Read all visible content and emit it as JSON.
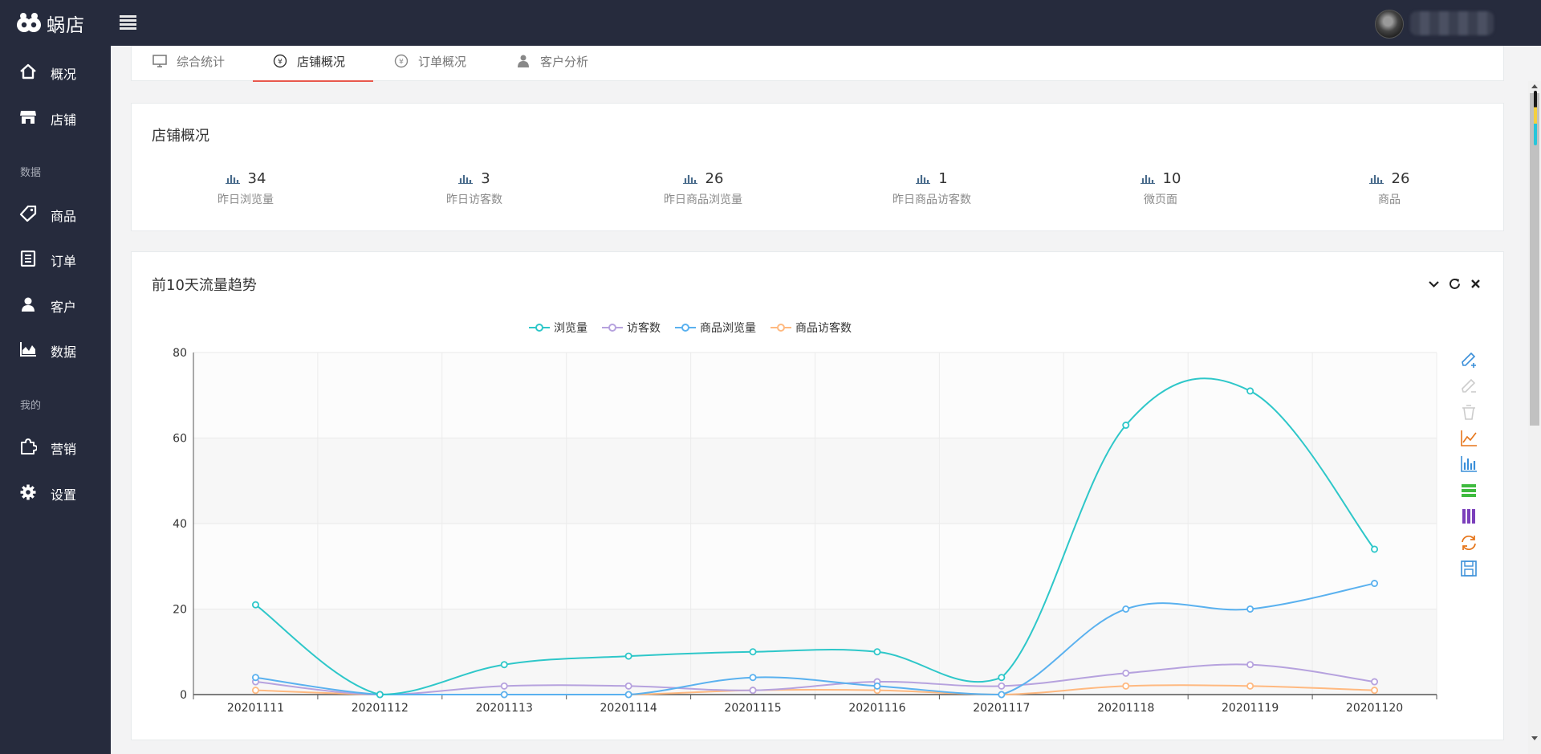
{
  "app": {
    "logo_text": "蜗店",
    "brand_color": "#262b3d",
    "accent_color": "#e8584d"
  },
  "sidebar": {
    "items_top": [
      {
        "label": "概况",
        "icon": "home-icon"
      },
      {
        "label": "店铺",
        "icon": "store-icon"
      }
    ],
    "section_data": "数据",
    "items_data": [
      {
        "label": "商品",
        "icon": "tag-icon"
      },
      {
        "label": "订单",
        "icon": "list-icon"
      },
      {
        "label": "客户",
        "icon": "user-icon"
      },
      {
        "label": "数据",
        "icon": "area-chart-icon"
      }
    ],
    "section_mine": "我的",
    "items_mine": [
      {
        "label": "营销",
        "icon": "puzzle-icon"
      },
      {
        "label": "设置",
        "icon": "gear-icon"
      }
    ]
  },
  "tabs": [
    {
      "label": "综合统计",
      "icon": "monitor-icon",
      "active": false
    },
    {
      "label": "店铺概况",
      "icon": "yen-icon",
      "active": true
    },
    {
      "label": "订单概况",
      "icon": "yen-icon",
      "active": false
    },
    {
      "label": "客户分析",
      "icon": "users-icon",
      "active": false
    }
  ],
  "overview": {
    "title": "店铺概况",
    "stats": [
      {
        "value": "34",
        "label": "昨日浏览量"
      },
      {
        "value": "3",
        "label": "昨日访客数"
      },
      {
        "value": "26",
        "label": "昨日商品浏览量"
      },
      {
        "value": "1",
        "label": "昨日商品访客数"
      },
      {
        "value": "10",
        "label": "微页面"
      },
      {
        "value": "26",
        "label": "商品"
      }
    ]
  },
  "trend_panel": {
    "title": "前10天流量趋势"
  },
  "chart_data": {
    "type": "line",
    "x": [
      "20201111",
      "20201112",
      "20201113",
      "20201114",
      "20201115",
      "20201116",
      "20201117",
      "20201118",
      "20201119",
      "20201120"
    ],
    "ylim": [
      0,
      80
    ],
    "yticks": [
      "0",
      "20",
      "40",
      "60",
      "80"
    ],
    "legend_position": "top",
    "grid": true,
    "series": [
      {
        "name": "浏览量",
        "color": "#2ec7c9",
        "values": [
          21,
          0,
          7,
          9,
          10,
          10,
          4,
          63,
          71,
          34
        ]
      },
      {
        "name": "访客数",
        "color": "#b6a2de",
        "values": [
          3,
          0,
          2,
          2,
          1,
          3,
          2,
          5,
          7,
          3
        ]
      },
      {
        "name": "商品浏览量",
        "color": "#5ab1ef",
        "values": [
          4,
          0,
          0,
          0,
          4,
          2,
          0,
          20,
          20,
          26
        ]
      },
      {
        "name": "商品访客数",
        "color": "#ffb980",
        "values": [
          1,
          0,
          0,
          0,
          1,
          1,
          0,
          2,
          2,
          1
        ]
      }
    ]
  },
  "toolbox": [
    "zoom-in-icon",
    "zoom-out-icon",
    "zoom-reset-icon",
    "line-chart-icon",
    "bar-chart-icon",
    "stack-icon",
    "tiled-icon",
    "restore-icon",
    "save-image-icon"
  ]
}
